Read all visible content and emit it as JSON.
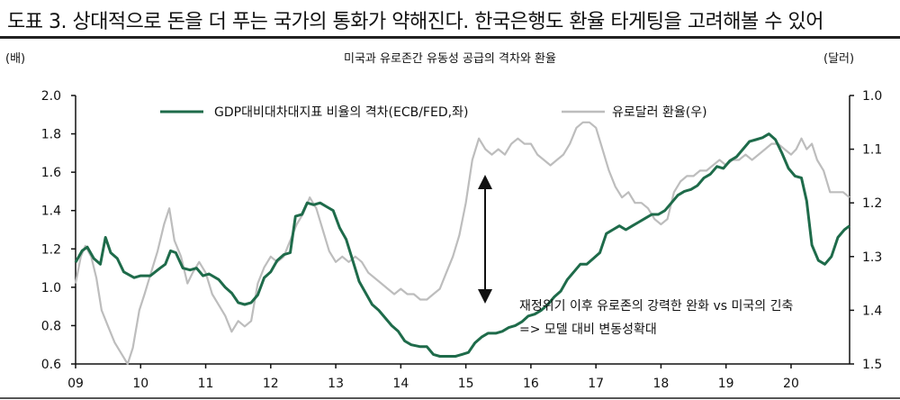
{
  "header": {
    "title": "도표 3. 상대적으로 돈을 더 푸는 국가의 통화가 약해진다. 한국은행도 환율 타게팅을 고려해볼 수 있어"
  },
  "chart_data": {
    "type": "line",
    "title": "미국과 유로존간 유동성 공급의 격차와 환율",
    "left_unit": "(배)",
    "right_unit": "(달러)",
    "x_ticks": [
      "09",
      "10",
      "11",
      "12",
      "13",
      "14",
      "15",
      "16",
      "17",
      "18",
      "19",
      "20"
    ],
    "y_left": {
      "min": 0.6,
      "max": 2.0,
      "step": 0.2,
      "ticks": [
        "0.6",
        "0.8",
        "1.0",
        "1.2",
        "1.4",
        "1.6",
        "1.8",
        "2.0"
      ]
    },
    "y_right": {
      "min": 1.0,
      "max": 1.5,
      "step": 0.1,
      "inverted": true,
      "ticks": [
        "1.0",
        "1.1",
        "1.2",
        "1.3",
        "1.4",
        "1.5"
      ]
    },
    "x_range": [
      2009.0,
      2020.9
    ],
    "legend": {
      "placement": "top"
    },
    "series": [
      {
        "name": "GDP대비대차대지표 비율의 격차(ECB/FED,좌)",
        "axis": "left",
        "color": "#1e6b4a",
        "points": [
          [
            2009.0,
            1.13
          ],
          [
            2009.1,
            1.19
          ],
          [
            2009.18,
            1.21
          ],
          [
            2009.28,
            1.15
          ],
          [
            2009.38,
            1.12
          ],
          [
            2009.46,
            1.26
          ],
          [
            2009.54,
            1.18
          ],
          [
            2009.64,
            1.15
          ],
          [
            2009.74,
            1.08
          ],
          [
            2009.9,
            1.05
          ],
          [
            2010.0,
            1.06
          ],
          [
            2010.15,
            1.06
          ],
          [
            2010.3,
            1.1
          ],
          [
            2010.38,
            1.12
          ],
          [
            2010.46,
            1.19
          ],
          [
            2010.54,
            1.18
          ],
          [
            2010.65,
            1.1
          ],
          [
            2010.76,
            1.09
          ],
          [
            2010.86,
            1.1
          ],
          [
            2010.96,
            1.06
          ],
          [
            2011.05,
            1.07
          ],
          [
            2011.2,
            1.04
          ],
          [
            2011.3,
            1.0
          ],
          [
            2011.4,
            0.97
          ],
          [
            2011.5,
            0.92
          ],
          [
            2011.6,
            0.91
          ],
          [
            2011.7,
            0.92
          ],
          [
            2011.8,
            0.96
          ],
          [
            2011.9,
            1.05
          ],
          [
            2012.0,
            1.08
          ],
          [
            2012.1,
            1.14
          ],
          [
            2012.2,
            1.17
          ],
          [
            2012.3,
            1.18
          ],
          [
            2012.38,
            1.37
          ],
          [
            2012.48,
            1.38
          ],
          [
            2012.56,
            1.44
          ],
          [
            2012.66,
            1.43
          ],
          [
            2012.76,
            1.44
          ],
          [
            2012.86,
            1.42
          ],
          [
            2012.96,
            1.4
          ],
          [
            2013.06,
            1.31
          ],
          [
            2013.16,
            1.25
          ],
          [
            2013.26,
            1.14
          ],
          [
            2013.36,
            1.03
          ],
          [
            2013.46,
            0.97
          ],
          [
            2013.56,
            0.91
          ],
          [
            2013.66,
            0.88
          ],
          [
            2013.76,
            0.84
          ],
          [
            2013.86,
            0.8
          ],
          [
            2013.96,
            0.77
          ],
          [
            2014.06,
            0.72
          ],
          [
            2014.16,
            0.7
          ],
          [
            2014.3,
            0.69
          ],
          [
            2014.4,
            0.69
          ],
          [
            2014.5,
            0.65
          ],
          [
            2014.6,
            0.64
          ],
          [
            2014.7,
            0.64
          ],
          [
            2014.84,
            0.64
          ],
          [
            2014.94,
            0.65
          ],
          [
            2015.04,
            0.66
          ],
          [
            2015.14,
            0.71
          ],
          [
            2015.24,
            0.74
          ],
          [
            2015.34,
            0.76
          ],
          [
            2015.46,
            0.76
          ],
          [
            2015.56,
            0.77
          ],
          [
            2015.66,
            0.79
          ],
          [
            2015.76,
            0.8
          ],
          [
            2015.86,
            0.82
          ],
          [
            2015.96,
            0.85
          ],
          [
            2016.06,
            0.86
          ],
          [
            2016.16,
            0.88
          ],
          [
            2016.26,
            0.91
          ],
          [
            2016.36,
            0.95
          ],
          [
            2016.46,
            0.98
          ],
          [
            2016.56,
            1.04
          ],
          [
            2016.66,
            1.08
          ],
          [
            2016.76,
            1.12
          ],
          [
            2016.86,
            1.12
          ],
          [
            2016.96,
            1.15
          ],
          [
            2017.06,
            1.18
          ],
          [
            2017.16,
            1.28
          ],
          [
            2017.26,
            1.3
          ],
          [
            2017.36,
            1.32
          ],
          [
            2017.46,
            1.3
          ],
          [
            2017.56,
            1.32
          ],
          [
            2017.66,
            1.34
          ],
          [
            2017.76,
            1.36
          ],
          [
            2017.86,
            1.38
          ],
          [
            2017.96,
            1.38
          ],
          [
            2018.06,
            1.4
          ],
          [
            2018.16,
            1.44
          ],
          [
            2018.26,
            1.48
          ],
          [
            2018.36,
            1.5
          ],
          [
            2018.46,
            1.51
          ],
          [
            2018.56,
            1.53
          ],
          [
            2018.66,
            1.57
          ],
          [
            2018.76,
            1.59
          ],
          [
            2018.86,
            1.63
          ],
          [
            2018.96,
            1.62
          ],
          [
            2019.06,
            1.66
          ],
          [
            2019.16,
            1.68
          ],
          [
            2019.26,
            1.72
          ],
          [
            2019.36,
            1.76
          ],
          [
            2019.46,
            1.77
          ],
          [
            2019.56,
            1.78
          ],
          [
            2019.66,
            1.8
          ],
          [
            2019.76,
            1.77
          ],
          [
            2019.86,
            1.7
          ],
          [
            2019.96,
            1.62
          ],
          [
            2020.06,
            1.58
          ],
          [
            2020.16,
            1.57
          ],
          [
            2020.24,
            1.45
          ],
          [
            2020.32,
            1.22
          ],
          [
            2020.42,
            1.14
          ],
          [
            2020.52,
            1.12
          ],
          [
            2020.62,
            1.16
          ],
          [
            2020.72,
            1.26
          ],
          [
            2020.82,
            1.3
          ],
          [
            2020.9,
            1.32
          ]
        ]
      },
      {
        "name": "유로달러 환율(우)",
        "axis": "right",
        "color": "#bdbdbd",
        "points": [
          [
            2009.0,
            1.35
          ],
          [
            2009.08,
            1.3
          ],
          [
            2009.15,
            1.28
          ],
          [
            2009.24,
            1.3
          ],
          [
            2009.32,
            1.34
          ],
          [
            2009.4,
            1.4
          ],
          [
            2009.5,
            1.43
          ],
          [
            2009.6,
            1.46
          ],
          [
            2009.7,
            1.48
          ],
          [
            2009.8,
            1.5
          ],
          [
            2009.88,
            1.47
          ],
          [
            2009.98,
            1.4
          ],
          [
            2010.06,
            1.37
          ],
          [
            2010.16,
            1.33
          ],
          [
            2010.26,
            1.29
          ],
          [
            2010.36,
            1.24
          ],
          [
            2010.44,
            1.21
          ],
          [
            2010.52,
            1.27
          ],
          [
            2010.62,
            1.3
          ],
          [
            2010.72,
            1.35
          ],
          [
            2010.8,
            1.33
          ],
          [
            2010.9,
            1.31
          ],
          [
            2011.0,
            1.33
          ],
          [
            2011.1,
            1.37
          ],
          [
            2011.2,
            1.39
          ],
          [
            2011.3,
            1.41
          ],
          [
            2011.4,
            1.44
          ],
          [
            2011.5,
            1.42
          ],
          [
            2011.6,
            1.43
          ],
          [
            2011.7,
            1.42
          ],
          [
            2011.8,
            1.35
          ],
          [
            2011.9,
            1.32
          ],
          [
            2012.0,
            1.3
          ],
          [
            2012.1,
            1.31
          ],
          [
            2012.2,
            1.3
          ],
          [
            2012.3,
            1.27
          ],
          [
            2012.4,
            1.24
          ],
          [
            2012.5,
            1.22
          ],
          [
            2012.6,
            1.19
          ],
          [
            2012.7,
            1.21
          ],
          [
            2012.8,
            1.25
          ],
          [
            2012.9,
            1.29
          ],
          [
            2013.0,
            1.31
          ],
          [
            2013.1,
            1.3
          ],
          [
            2013.2,
            1.31
          ],
          [
            2013.3,
            1.3
          ],
          [
            2013.4,
            1.31
          ],
          [
            2013.5,
            1.33
          ],
          [
            2013.6,
            1.34
          ],
          [
            2013.7,
            1.35
          ],
          [
            2013.8,
            1.36
          ],
          [
            2013.9,
            1.37
          ],
          [
            2014.0,
            1.36
          ],
          [
            2014.1,
            1.37
          ],
          [
            2014.2,
            1.37
          ],
          [
            2014.3,
            1.38
          ],
          [
            2014.4,
            1.38
          ],
          [
            2014.5,
            1.37
          ],
          [
            2014.6,
            1.36
          ],
          [
            2014.7,
            1.33
          ],
          [
            2014.8,
            1.3
          ],
          [
            2014.9,
            1.26
          ],
          [
            2015.0,
            1.2
          ],
          [
            2015.1,
            1.12
          ],
          [
            2015.2,
            1.08
          ],
          [
            2015.3,
            1.1
          ],
          [
            2015.4,
            1.11
          ],
          [
            2015.5,
            1.1
          ],
          [
            2015.6,
            1.11
          ],
          [
            2015.7,
            1.09
          ],
          [
            2015.8,
            1.08
          ],
          [
            2015.9,
            1.09
          ],
          [
            2016.0,
            1.09
          ],
          [
            2016.1,
            1.11
          ],
          [
            2016.2,
            1.12
          ],
          [
            2016.3,
            1.13
          ],
          [
            2016.4,
            1.12
          ],
          [
            2016.5,
            1.11
          ],
          [
            2016.6,
            1.09
          ],
          [
            2016.7,
            1.06
          ],
          [
            2016.8,
            1.05
          ],
          [
            2016.9,
            1.05
          ],
          [
            2017.0,
            1.06
          ],
          [
            2017.1,
            1.1
          ],
          [
            2017.2,
            1.14
          ],
          [
            2017.3,
            1.17
          ],
          [
            2017.4,
            1.19
          ],
          [
            2017.5,
            1.18
          ],
          [
            2017.6,
            1.2
          ],
          [
            2017.7,
            1.2
          ],
          [
            2017.8,
            1.21
          ],
          [
            2017.9,
            1.23
          ],
          [
            2018.0,
            1.24
          ],
          [
            2018.1,
            1.23
          ],
          [
            2018.2,
            1.18
          ],
          [
            2018.3,
            1.16
          ],
          [
            2018.4,
            1.15
          ],
          [
            2018.5,
            1.15
          ],
          [
            2018.6,
            1.14
          ],
          [
            2018.7,
            1.14
          ],
          [
            2018.8,
            1.13
          ],
          [
            2018.9,
            1.12
          ],
          [
            2019.0,
            1.13
          ],
          [
            2019.1,
            1.12
          ],
          [
            2019.2,
            1.12
          ],
          [
            2019.3,
            1.11
          ],
          [
            2019.4,
            1.12
          ],
          [
            2019.5,
            1.11
          ],
          [
            2019.6,
            1.1
          ],
          [
            2019.7,
            1.09
          ],
          [
            2019.8,
            1.09
          ],
          [
            2019.9,
            1.1
          ],
          [
            2020.0,
            1.11
          ],
          [
            2020.08,
            1.1
          ],
          [
            2020.16,
            1.08
          ],
          [
            2020.24,
            1.1
          ],
          [
            2020.32,
            1.09
          ],
          [
            2020.4,
            1.12
          ],
          [
            2020.5,
            1.14
          ],
          [
            2020.6,
            1.18
          ],
          [
            2020.7,
            1.18
          ],
          [
            2020.8,
            1.18
          ],
          [
            2020.9,
            1.19
          ]
        ]
      }
    ],
    "annotation": {
      "line1": "재정위기 이후 유로존의 강력한 완화 vs 미국의 긴축",
      "line2": "=> 모델 대비 변동성확대"
    }
  }
}
